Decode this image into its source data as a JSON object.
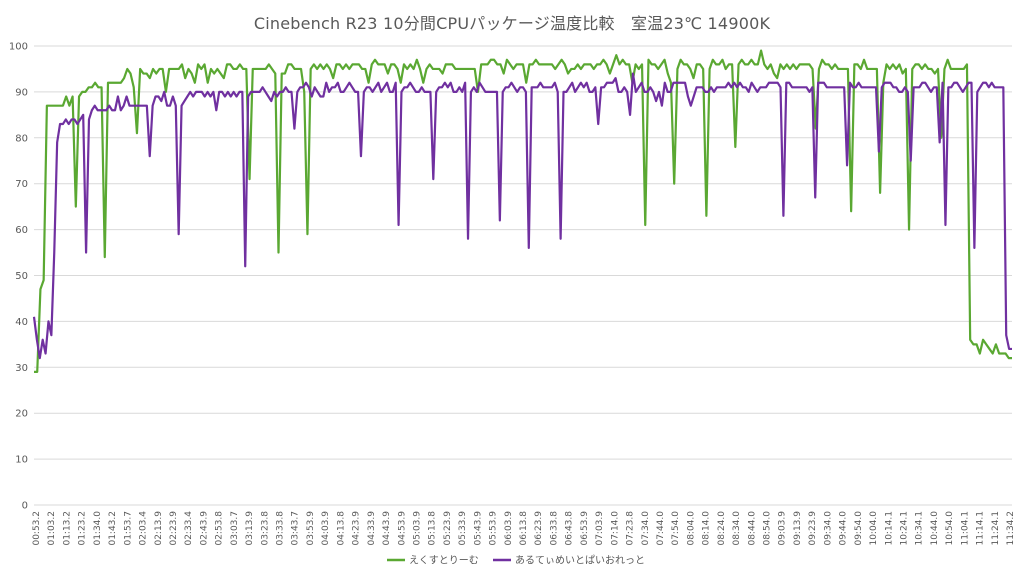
{
  "chart_data": {
    "type": "line",
    "title": "Cinebench R23 10分間CPUパッケージ温度比較　室温23℃ 14900K",
    "xlabel": "",
    "ylabel": "",
    "ylim": [
      0,
      100
    ],
    "yticks": [
      "0",
      "10",
      "20",
      "30",
      "40",
      "50",
      "60",
      "70",
      "80",
      "90",
      "100"
    ],
    "grid": true,
    "legend_position": "bottom",
    "x_tick_labels": [
      "00:53.2",
      "01:03.2",
      "01:13.2",
      "01:23.2",
      "01:34.0",
      "01:43.2",
      "01:53.7",
      "02:03.4",
      "02:13.9",
      "02:23.9",
      "02:33.4",
      "02:43.9",
      "02:53.8",
      "03:03.7",
      "03:13.9",
      "03:23.8",
      "03:33.8",
      "03:43.7",
      "03:53.9",
      "04:03.9",
      "04:13.8",
      "04:23.9",
      "04:33.9",
      "04:43.9",
      "04:53.9",
      "05:03.9",
      "05:13.8",
      "05:23.9",
      "05:33.9",
      "05:43.9",
      "05:53.9",
      "06:03.9",
      "06:13.8",
      "06:23.9",
      "06:33.8",
      "06:43.8",
      "06:53.9",
      "07:03.9",
      "07:14.0",
      "07:23.8",
      "07:34.0",
      "07:44.0",
      "07:54.0",
      "08:04.0",
      "08:14.0",
      "08:24.0",
      "08:34.0",
      "08:44.0",
      "08:54.0",
      "09:03.9",
      "09:13.9",
      "09:23.9",
      "09:34.0",
      "09:44.0",
      "09:54.0",
      "10:04.0",
      "10:14.1",
      "10:24.1",
      "10:34.1",
      "10:44.0",
      "10:54.0",
      "11:04.1",
      "11:14.1",
      "11:24.1",
      "11:34.2"
    ],
    "series": [
      {
        "name": "えくすとりーむ",
        "color": "#5aa832",
        "values": [
          29,
          29,
          47,
          49,
          87,
          87,
          87,
          87,
          87,
          87,
          89,
          87,
          89,
          65,
          89,
          90,
          90,
          91,
          91,
          92,
          91,
          91,
          54,
          92,
          92,
          92,
          92,
          92,
          93,
          95,
          94,
          91,
          81,
          95,
          94,
          94,
          93,
          95,
          94,
          95,
          95,
          90,
          95,
          95,
          95,
          95,
          96,
          93,
          95,
          94,
          92,
          96,
          95,
          96,
          92,
          95,
          94,
          95,
          94,
          93,
          96,
          96,
          95,
          95,
          96,
          95,
          95,
          71,
          95,
          95,
          95,
          95,
          95,
          96,
          95,
          94,
          55,
          94,
          94,
          96,
          96,
          95,
          95,
          95,
          90,
          59,
          95,
          96,
          95,
          96,
          95,
          96,
          95,
          93,
          96,
          96,
          95,
          96,
          95,
          96,
          96,
          96,
          95,
          95,
          92,
          96,
          97,
          96,
          96,
          96,
          94,
          96,
          96,
          95,
          92,
          96,
          95,
          96,
          95,
          97,
          95,
          92,
          95,
          96,
          95,
          95,
          95,
          94,
          96,
          96,
          96,
          95,
          95,
          95,
          95,
          95,
          95,
          95,
          90,
          96,
          96,
          96,
          97,
          97,
          96,
          96,
          94,
          97,
          96,
          95,
          96,
          96,
          96,
          92,
          96,
          96,
          97,
          96,
          96,
          96,
          96,
          96,
          95,
          96,
          97,
          96,
          94,
          95,
          95,
          96,
          95,
          96,
          96,
          96,
          95,
          96,
          96,
          97,
          96,
          94,
          96,
          98,
          96,
          97,
          96,
          96,
          92,
          96,
          95,
          96,
          61,
          97,
          96,
          96,
          95,
          96,
          97,
          94,
          92,
          70,
          95,
          97,
          96,
          96,
          95,
          93,
          96,
          96,
          95,
          63,
          95,
          97,
          96,
          96,
          97,
          95,
          96,
          96,
          78,
          96,
          97,
          96,
          96,
          97,
          96,
          96,
          99,
          96,
          95,
          96,
          94,
          93,
          96,
          95,
          96,
          95,
          96,
          95,
          96,
          96,
          96,
          96,
          95,
          82,
          95,
          97,
          96,
          96,
          95,
          96,
          95,
          95,
          95,
          95,
          64,
          96,
          96,
          95,
          97,
          95,
          95,
          95,
          95,
          68,
          92,
          96,
          95,
          96,
          95,
          96,
          94,
          95,
          60,
          95,
          96,
          96,
          95,
          96,
          95,
          95,
          94,
          95,
          80,
          95,
          97,
          95,
          95,
          95,
          95,
          95,
          96,
          36,
          35,
          35,
          33,
          36,
          35,
          34,
          33,
          35,
          33,
          33,
          33,
          32,
          32
        ],
        "visible_legend": true
      },
      {
        "name": "あるてぃめいとぱいおれっと",
        "color": "#7030a0",
        "values": [
          41,
          36,
          32,
          36,
          33,
          40,
          37,
          55,
          79,
          83,
          83,
          84,
          83,
          84,
          84,
          83,
          84,
          85,
          55,
          84,
          86,
          87,
          86,
          86,
          86,
          86,
          87,
          86,
          86,
          89,
          86,
          87,
          89,
          87,
          87,
          87,
          87,
          87,
          87,
          87,
          76,
          87,
          89,
          89,
          88,
          90,
          87,
          87,
          89,
          87,
          59,
          87,
          88,
          89,
          90,
          89,
          90,
          90,
          90,
          89,
          90,
          89,
          90,
          86,
          90,
          90,
          89,
          90,
          89,
          90,
          89,
          90,
          90,
          52,
          89,
          90,
          90,
          90,
          90,
          91,
          90,
          89,
          88,
          90,
          89,
          90,
          90,
          91,
          90,
          90,
          82,
          90,
          91,
          91,
          92,
          91,
          89,
          91,
          90,
          89,
          89,
          92,
          90,
          91,
          91,
          92,
          90,
          90,
          91,
          92,
          91,
          90,
          90,
          76,
          90,
          91,
          91,
          90,
          91,
          92,
          90,
          91,
          92,
          90,
          90,
          92,
          61,
          90,
          91,
          91,
          92,
          91,
          90,
          90,
          91,
          90,
          90,
          90,
          71,
          90,
          91,
          91,
          92,
          91,
          92,
          90,
          90,
          91,
          90,
          92,
          58,
          90,
          91,
          90,
          92,
          91,
          90,
          90,
          90,
          90,
          90,
          62,
          90,
          91,
          91,
          92,
          91,
          90,
          91,
          91,
          90,
          56,
          91,
          91,
          91,
          92,
          91,
          91,
          91,
          91,
          92,
          90,
          58,
          90,
          90,
          91,
          92,
          90,
          91,
          92,
          91,
          92,
          90,
          90,
          91,
          83,
          91,
          91,
          92,
          92,
          92,
          93,
          90,
          90,
          91,
          90,
          85,
          94,
          90,
          91,
          92,
          90,
          90,
          91,
          90,
          88,
          90,
          87,
          92,
          90,
          90,
          92,
          92,
          92,
          92,
          92,
          89,
          87,
          89,
          91,
          91,
          91,
          90,
          90,
          91,
          90,
          91,
          91,
          91,
          91,
          92,
          91,
          92,
          91,
          92,
          91,
          91,
          90,
          92,
          91,
          90,
          91,
          91,
          91,
          92,
          92,
          92,
          92,
          91,
          63,
          92,
          92,
          91,
          91,
          91,
          91,
          91,
          91,
          90,
          91,
          67,
          92,
          92,
          92,
          91,
          91,
          91,
          91,
          91,
          91,
          91,
          74,
          92,
          91,
          91,
          92,
          91,
          91,
          91,
          91,
          91,
          91,
          77,
          91,
          92,
          92,
          92,
          91,
          91,
          90,
          90,
          91,
          90,
          75,
          91,
          91,
          91,
          92,
          92,
          91,
          90,
          91,
          91,
          79,
          92,
          61,
          91,
          91,
          92,
          92,
          91,
          90,
          91,
          92,
          92,
          56,
          90,
          91,
          92,
          92,
          91,
          92,
          91,
          91,
          91,
          91,
          37,
          34,
          34
        ]
      }
    ]
  }
}
